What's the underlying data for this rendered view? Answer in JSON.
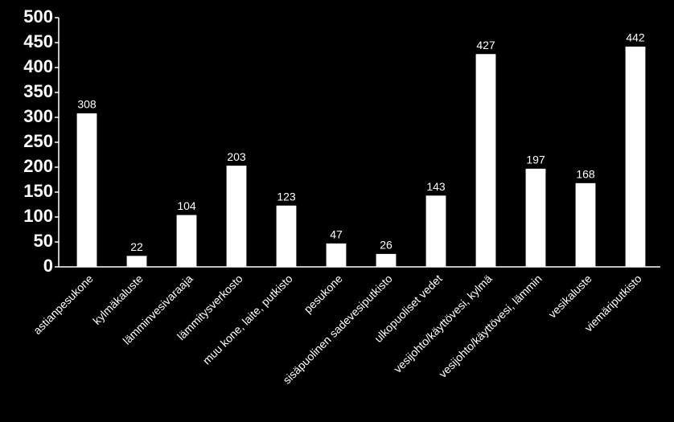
{
  "chart_data": {
    "type": "bar",
    "categories": [
      "astianpesukone",
      "kylmäkaluste",
      "lämminvesivaraaja",
      "lämmitysverkosto",
      "muu kone, laite, putkisto",
      "pesukone",
      "sisäpuolinen sadevesiputkisto",
      "ulkopuoliset vedet",
      "vesijohto/käyttövesi, kylmä",
      "vesijohto/käyttövesi, lämmin",
      "vesikaluste",
      "viemäriputkisto"
    ],
    "values": [
      308,
      22,
      104,
      203,
      123,
      47,
      26,
      143,
      427,
      197,
      168,
      442
    ],
    "color": "#ffffff",
    "ylim": [
      0,
      500
    ],
    "yticks": [
      0,
      50,
      100,
      150,
      200,
      250,
      300,
      350,
      400,
      450,
      500
    ],
    "grid": false
  }
}
